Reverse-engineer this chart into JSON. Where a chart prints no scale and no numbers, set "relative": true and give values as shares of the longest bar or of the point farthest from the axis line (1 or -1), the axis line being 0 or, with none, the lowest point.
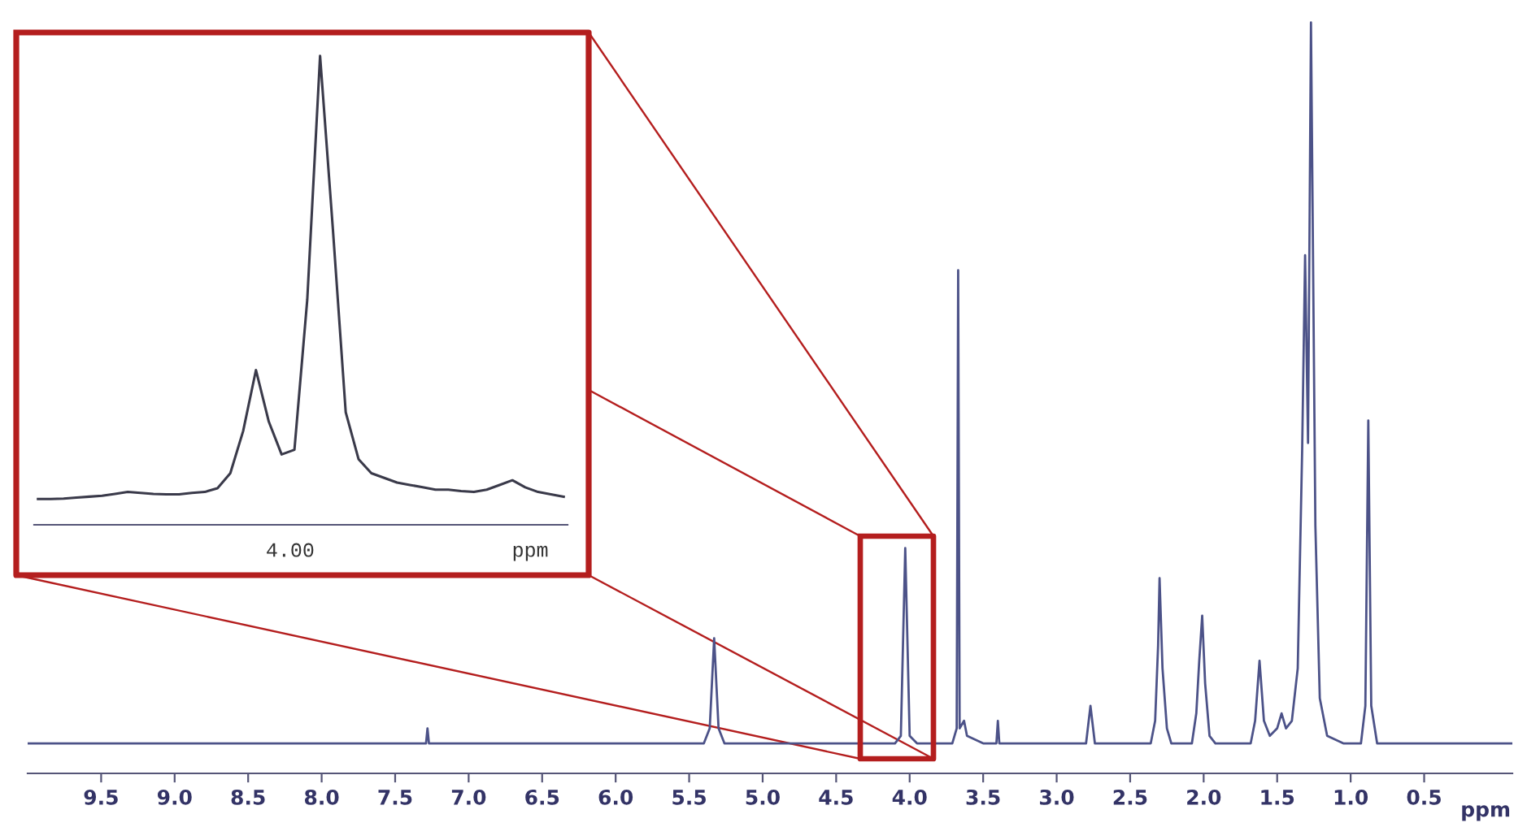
{
  "chart_data": [
    {
      "type": "line",
      "relative": true,
      "xlabel": "ppm",
      "xlim": [
        10.0,
        -0.1
      ],
      "xticks": [
        9.5,
        {
          "value": 9.0,
          "label": "9.0"
        },
        8.5,
        {
          "value": 8.0,
          "label": "8.0"
        },
        7.5,
        {
          "value": 7.0,
          "label": "7.0"
        },
        6.5,
        {
          "value": 6.0,
          "label": "6.0"
        },
        5.5,
        {
          "value": 5.0,
          "label": "5.0"
        },
        4.5,
        {
          "value": 4.0,
          "label": "4.0"
        },
        3.5,
        {
          "value": 3.0,
          "label": "3.0"
        },
        2.5,
        {
          "value": 2.0,
          "label": "2.0"
        },
        1.5,
        {
          "value": 1.0,
          "label": "1.0"
        },
        0.5
      ],
      "grid": false,
      "legend": false,
      "series": [
        {
          "color": "#4c5288",
          "x": [
            10.0,
            9.2,
            7.29,
            7.28,
            7.27,
            6.0,
            5.4,
            5.36,
            5.33,
            5.3,
            5.26,
            4.1,
            4.06,
            4.03,
            4.0,
            3.95,
            3.71,
            3.68,
            3.67,
            3.66,
            3.63,
            3.61,
            3.5,
            3.41,
            3.4,
            3.39,
            2.8,
            2.77,
            2.74,
            2.36,
            2.33,
            2.31,
            2.3,
            2.28,
            2.25,
            2.22,
            2.08,
            2.05,
            2.03,
            2.01,
            1.99,
            1.96,
            1.92,
            1.68,
            1.65,
            1.62,
            1.59,
            1.55,
            1.5,
            1.47,
            1.44,
            1.4,
            1.36,
            1.33,
            1.31,
            1.29,
            1.27,
            1.24,
            1.21,
            1.16,
            1.05,
            0.93,
            0.9,
            0.88,
            0.86,
            0.82,
            -0.1
          ],
          "values": [
            0.04,
            0.04,
            0.04,
            0.06,
            0.04,
            0.04,
            0.04,
            0.06,
            0.18,
            0.06,
            0.04,
            0.04,
            0.05,
            0.3,
            0.05,
            0.04,
            0.04,
            0.06,
            0.67,
            0.06,
            0.07,
            0.05,
            0.04,
            0.04,
            0.07,
            0.04,
            0.04,
            0.09,
            0.04,
            0.04,
            0.07,
            0.17,
            0.26,
            0.14,
            0.06,
            0.04,
            0.04,
            0.08,
            0.15,
            0.21,
            0.12,
            0.05,
            0.04,
            0.04,
            0.07,
            0.15,
            0.07,
            0.05,
            0.06,
            0.08,
            0.06,
            0.07,
            0.14,
            0.43,
            0.69,
            0.44,
            1.0,
            0.33,
            0.1,
            0.05,
            0.04,
            0.04,
            0.09,
            0.47,
            0.09,
            0.04,
            0.04
          ]
        }
      ]
    },
    {
      "type": "line",
      "relative": true,
      "xlabel": "ppm",
      "annotations": [
        "4.00"
      ],
      "grid": false,
      "legend": false,
      "categories": [
        null,
        null,
        null,
        null,
        null,
        null,
        null,
        null,
        null,
        null,
        null,
        null,
        null,
        null,
        null,
        null,
        null,
        null,
        null,
        null,
        null,
        null,
        null,
        null,
        null,
        null,
        null,
        null,
        null,
        null,
        null,
        null,
        null,
        null,
        null,
        null,
        null,
        null,
        null,
        null,
        null,
        null
      ],
      "series": [
        {
          "color": "#3a3a4a",
          "values": [
            0.055,
            0.055,
            0.056,
            0.058,
            0.06,
            0.062,
            0.066,
            0.07,
            0.068,
            0.066,
            0.065,
            0.065,
            0.068,
            0.07,
            0.078,
            0.11,
            0.2,
            0.33,
            0.22,
            0.15,
            0.16,
            0.48,
            1.0,
            0.63,
            0.24,
            0.14,
            0.11,
            0.1,
            0.09,
            0.085,
            0.08,
            0.075,
            0.075,
            0.072,
            0.07,
            0.075,
            0.085,
            0.095,
            0.08,
            0.07,
            0.065,
            0.06
          ]
        }
      ]
    }
  ]
}
